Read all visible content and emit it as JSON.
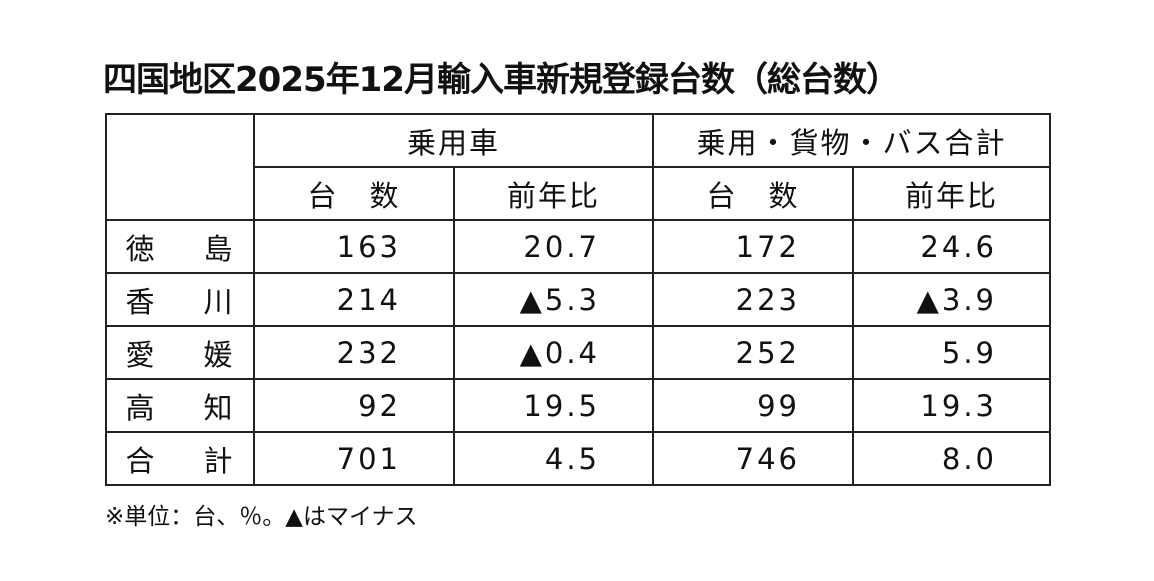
{
  "title": "四国地区2025年12月輸入車新規登録台数（総台数）",
  "table": {
    "group_headers": [
      "乗用車",
      "乗用・貨物・バス合計"
    ],
    "sub_headers": [
      "台　数",
      "前年比",
      "台　数",
      "前年比"
    ],
    "rows": [
      [
        "徳　島",
        "163",
        "20.7",
        "172",
        "24.6"
      ],
      [
        "香　川",
        "214",
        "▲5.3",
        "223",
        "▲3.9"
      ],
      [
        "愛　媛",
        "232",
        "▲0.4",
        "252",
        "5.9"
      ],
      [
        "高　知",
        "92",
        "19.5",
        "99",
        "19.3"
      ],
      [
        "合　計",
        "701",
        "4.5",
        "746",
        "8.0"
      ]
    ]
  },
  "footnote": "※単位：台、％。▲はマイナス"
}
